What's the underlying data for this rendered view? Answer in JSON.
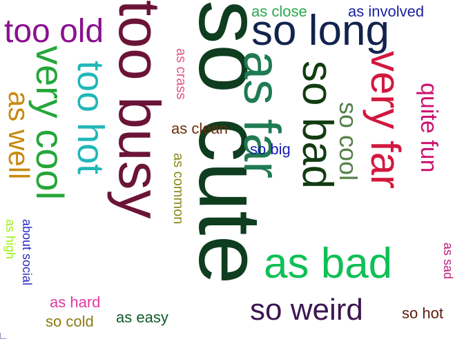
{
  "cloud": {
    "words": [
      {
        "text": "so cute",
        "color": "#0f3d1f",
        "rotate": true
      },
      {
        "text": "too busy",
        "color": "#6b1438",
        "rotate": true
      },
      {
        "text": "so long",
        "color": "#12234d",
        "rotate": false
      },
      {
        "text": "as far",
        "color": "#1f7a52",
        "rotate": true
      },
      {
        "text": "too old",
        "color": "#8a118f",
        "rotate": false
      },
      {
        "text": "very cool",
        "color": "#25a63a",
        "rotate": true
      },
      {
        "text": "too hot",
        "color": "#21b7b7",
        "rotate": true
      },
      {
        "text": "so bad",
        "color": "#123c12",
        "rotate": true
      },
      {
        "text": "very far",
        "color": "#d1183f",
        "rotate": true
      },
      {
        "text": "as bad",
        "color": "#0fbf55",
        "rotate": false
      },
      {
        "text": "so weird",
        "color": "#3c1652",
        "rotate": false
      },
      {
        "text": "as well",
        "color": "#c98a10",
        "rotate": true
      },
      {
        "text": "quite fun",
        "color": "#cc1270",
        "rotate": true
      },
      {
        "text": "so cool",
        "color": "#55804a",
        "rotate": true
      },
      {
        "text": "as close",
        "color": "#2aa84c",
        "rotate": false
      },
      {
        "text": "as involved",
        "color": "#1c22a0",
        "rotate": false
      },
      {
        "text": "as crass",
        "color": "#e05a80",
        "rotate": true
      },
      {
        "text": "as clean",
        "color": "#6a2e0c",
        "rotate": false
      },
      {
        "text": "so big",
        "color": "#1a1ab8",
        "rotate": false
      },
      {
        "text": "as common",
        "color": "#8a8a1a",
        "rotate": true
      },
      {
        "text": "as high",
        "color": "#9cf015",
        "rotate": true
      },
      {
        "text": "about social",
        "color": "#2a2ac8",
        "rotate": true
      },
      {
        "text": "as hard",
        "color": "#e03aa0",
        "rotate": false
      },
      {
        "text": "so cold",
        "color": "#8a7a10",
        "rotate": false
      },
      {
        "text": "as easy",
        "color": "#0e5a2a",
        "rotate": false
      },
      {
        "text": "so hot",
        "color": "#5a1a0a",
        "rotate": false
      },
      {
        "text": "as sad",
        "color": "#c01a78",
        "rotate": true
      }
    ]
  }
}
